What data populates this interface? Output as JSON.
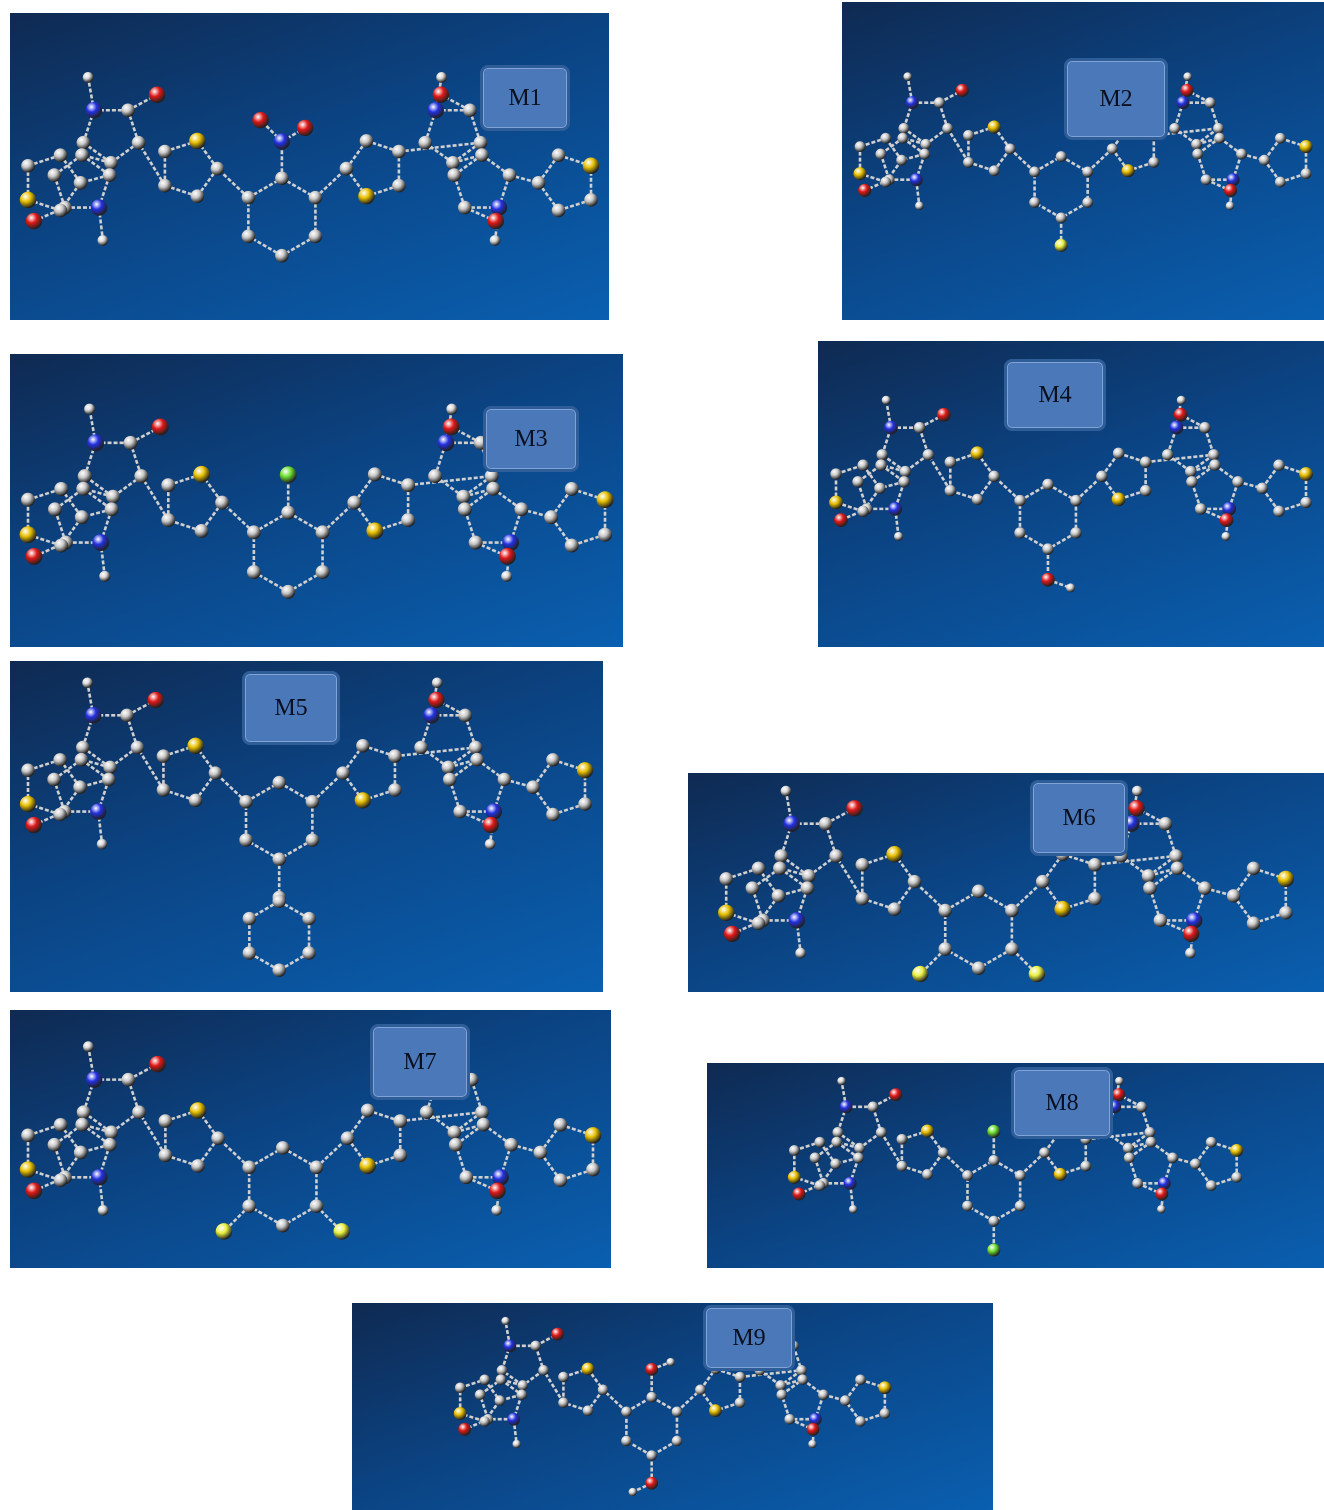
{
  "molecules": [
    {
      "id": "m1",
      "label": "M1",
      "substituent": "nitro"
    },
    {
      "id": "m2",
      "label": "M2",
      "substituent": "fluoro"
    },
    {
      "id": "m3",
      "label": "M3",
      "substituent": "chloro"
    },
    {
      "id": "m4",
      "label": "M4",
      "substituent": "hydroxy"
    },
    {
      "id": "m5",
      "label": "M5",
      "substituent": "phenyl"
    },
    {
      "id": "m6",
      "label": "M6",
      "substituent": "difluoro"
    },
    {
      "id": "m7",
      "label": "M7",
      "substituent": "difluoro"
    },
    {
      "id": "m8",
      "label": "M8",
      "substituent": "dichloro"
    },
    {
      "id": "m9",
      "label": "M9",
      "substituent": "dihydroxy"
    }
  ],
  "atom_colors": {
    "carbon": "#c9c9c9",
    "nitrogen": "#2230e0",
    "oxygen": "#e01818",
    "sulfur": "#e8c000",
    "fluorine": "#e8f040",
    "chlorine": "#6ee030",
    "hydrogen": "#d8d8d8"
  }
}
